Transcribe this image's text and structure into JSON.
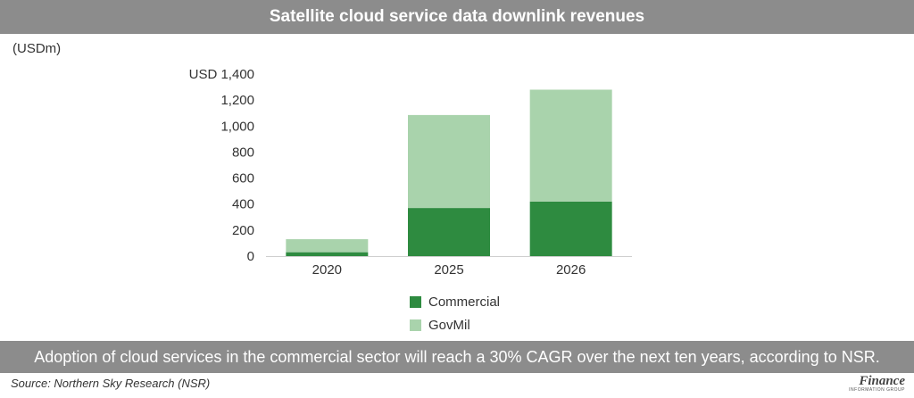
{
  "header": {
    "title": "Satellite cloud service data downlink revenues"
  },
  "unit_label": "(USDm)",
  "chart_data": {
    "type": "bar",
    "stacked": true,
    "categories": [
      "2020",
      "2025",
      "2026"
    ],
    "series": [
      {
        "name": "Commercial",
        "values": [
          30,
          370,
          420
        ],
        "color": "#2e8b40"
      },
      {
        "name": "GovMil",
        "values": [
          100,
          715,
          860
        ],
        "color": "#a9d3ac"
      }
    ],
    "ylim": [
      0,
      1400
    ],
    "ytick_labels": [
      "0",
      "200",
      "400",
      "600",
      "800",
      "1,000",
      "1,200",
      "USD 1,400"
    ],
    "grid": false,
    "legend_position": "bottom"
  },
  "caption": "Adoption of cloud services in the commercial sector will reach a 30% CAGR over the next ten years, according to NSR.",
  "source": "Source: Northern Sky Research (NSR)",
  "logo": {
    "main": "Finance",
    "sub": "INFORMATION GROUP"
  },
  "colors": {
    "bar_background": "#8c8c8c",
    "commercial": "#2e8b40",
    "govmil": "#a9d3ac"
  }
}
